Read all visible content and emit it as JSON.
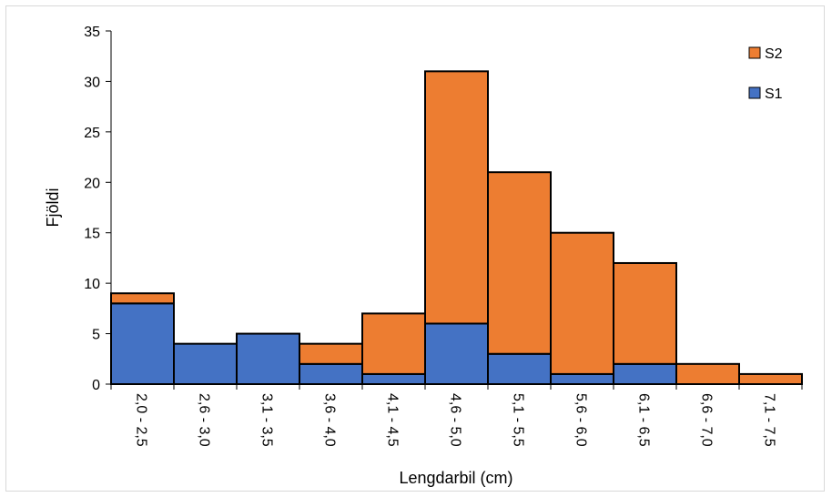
{
  "chart_data": {
    "type": "bar",
    "stacked": true,
    "title": "",
    "xlabel": "Lengdarbil (cm)",
    "ylabel": "Fjöldi",
    "ylim": [
      0,
      35
    ],
    "yticks": [
      0,
      5,
      10,
      15,
      20,
      25,
      30,
      35
    ],
    "grid": false,
    "legend_position": "top-right",
    "categories": [
      "2,0 - 2,5",
      "2,6 - 3,0",
      "3,1 - 3,5",
      "3,6 - 4,0",
      "4,1 - 4,5",
      "4,6 - 5,0",
      "5,1 - 5,5",
      "5,6 - 6,0",
      "6,1 - 6,5",
      "6,6 - 7,0",
      "7,1 - 7,5"
    ],
    "series": [
      {
        "name": "S1",
        "color": "#4472C4",
        "values": [
          8,
          4,
          5,
          2,
          1,
          6,
          3,
          1,
          2,
          0,
          0
        ]
      },
      {
        "name": "S2",
        "color": "#ED7D31",
        "values": [
          1,
          0,
          0,
          2,
          6,
          25,
          18,
          14,
          10,
          2,
          1
        ]
      }
    ],
    "legend": [
      {
        "name": "S2",
        "color": "#ED7D31"
      },
      {
        "name": "S1",
        "color": "#4472C4"
      }
    ]
  }
}
